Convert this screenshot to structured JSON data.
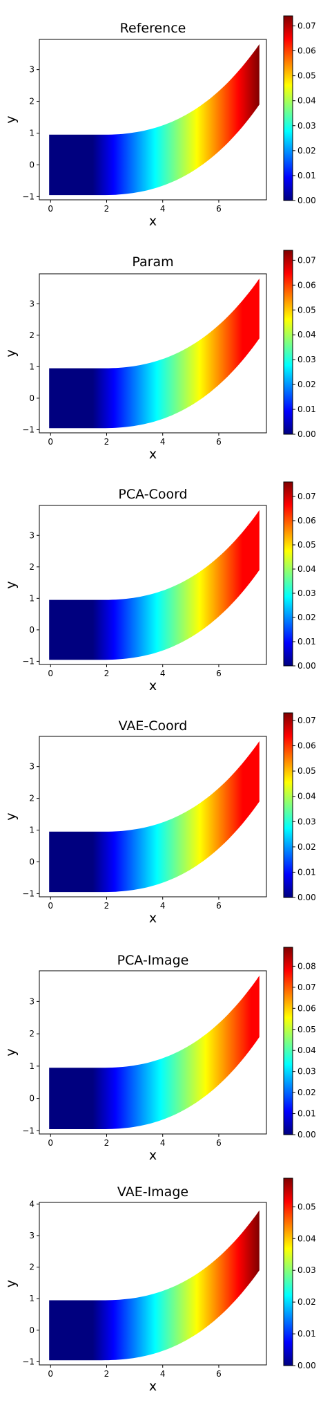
{
  "figure": {
    "colormap": "jet",
    "colormap_stops": [
      "#00007f",
      "#0000ff",
      "#007fff",
      "#00ffff",
      "#7fff7f",
      "#ffff00",
      "#ff7f00",
      "#ff0000",
      "#7f0000"
    ]
  },
  "chart_data": [
    {
      "type": "heatmap",
      "title": "Reference",
      "xlabel": "x",
      "ylabel": "y",
      "xlim": [
        -0.4,
        7.7
      ],
      "ylim": [
        -1.1,
        3.95
      ],
      "xticks": [
        0,
        2,
        4,
        6
      ],
      "yticks": [
        -1,
        0,
        1,
        2,
        3
      ],
      "colorbar": {
        "min": 0.0,
        "max": 0.074,
        "ticks": [
          "0.00",
          "0.01",
          "0.02",
          "0.03",
          "0.04",
          "0.05",
          "0.06",
          "0.07"
        ]
      },
      "field_range_at_tip": 0.074
    },
    {
      "type": "heatmap",
      "title": "Param",
      "xlabel": "x",
      "ylabel": "y",
      "xlim": [
        -0.4,
        7.7
      ],
      "ylim": [
        -1.1,
        3.95
      ],
      "xticks": [
        0,
        2,
        4,
        6
      ],
      "yticks": [
        -1,
        0,
        1,
        2,
        3
      ],
      "colorbar": {
        "min": 0.0,
        "max": 0.074,
        "ticks": [
          "0.00",
          "0.01",
          "0.02",
          "0.03",
          "0.04",
          "0.05",
          "0.06",
          "0.07"
        ]
      },
      "field_range_at_tip": 0.072
    },
    {
      "type": "heatmap",
      "title": "PCA-Coord",
      "xlabel": "x",
      "ylabel": "y",
      "xlim": [
        -0.4,
        7.7
      ],
      "ylim": [
        -1.1,
        3.95
      ],
      "xticks": [
        0,
        2,
        4,
        6
      ],
      "yticks": [
        -1,
        0,
        1,
        2,
        3
      ],
      "colorbar": {
        "min": 0.0,
        "max": 0.076,
        "ticks": [
          "0.00",
          "0.01",
          "0.02",
          "0.03",
          "0.04",
          "0.05",
          "0.06",
          "0.07"
        ]
      },
      "field_range_at_tip": 0.074
    },
    {
      "type": "heatmap",
      "title": "VAE-Coord",
      "xlabel": "x",
      "ylabel": "y",
      "xlim": [
        -0.4,
        7.7
      ],
      "ylim": [
        -1.1,
        3.95
      ],
      "xticks": [
        0,
        2,
        4,
        6
      ],
      "yticks": [
        -1,
        0,
        1,
        2,
        3
      ],
      "colorbar": {
        "min": 0.0,
        "max": 0.073,
        "ticks": [
          "0.00",
          "0.01",
          "0.02",
          "0.03",
          "0.04",
          "0.05",
          "0.06",
          "0.07"
        ]
      },
      "field_range_at_tip": 0.071
    },
    {
      "type": "heatmap",
      "title": "PCA-Image",
      "xlabel": "x",
      "ylabel": "y",
      "xlim": [
        -0.4,
        7.7
      ],
      "ylim": [
        -1.1,
        3.95
      ],
      "xticks": [
        0,
        2,
        4,
        6
      ],
      "yticks": [
        -1,
        0,
        1,
        2,
        3
      ],
      "colorbar": {
        "min": 0.0,
        "max": 0.089,
        "ticks": [
          "0.00",
          "0.01",
          "0.02",
          "0.03",
          "0.04",
          "0.05",
          "0.06",
          "0.07",
          "0.08"
        ]
      },
      "field_range_at_tip": 0.082
    },
    {
      "type": "heatmap",
      "title": "VAE-Image",
      "xlabel": "x",
      "ylabel": "y",
      "xlim": [
        -0.4,
        7.7
      ],
      "ylim": [
        -1.1,
        4.05
      ],
      "xticks": [
        0,
        2,
        4,
        6
      ],
      "yticks": [
        -1,
        0,
        1,
        2,
        3,
        4
      ],
      "colorbar": {
        "min": 0.0,
        "max": 0.059,
        "ticks": [
          "0.00",
          "0.01",
          "0.02",
          "0.03",
          "0.04",
          "0.05"
        ]
      },
      "field_range_at_tip": 0.059
    }
  ]
}
